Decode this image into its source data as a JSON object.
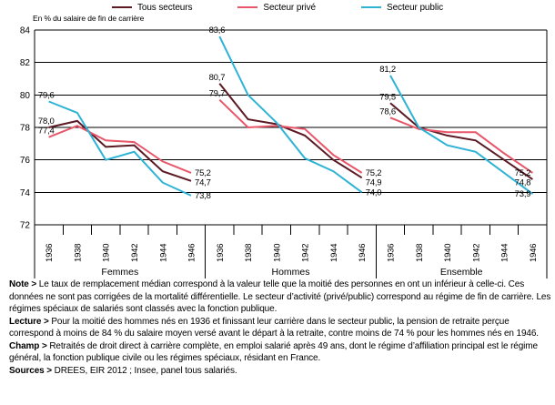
{
  "legend": {
    "items": [
      {
        "label": "Tous secteurs",
        "color": "#5b1a24"
      },
      {
        "label": "Secteur privé",
        "color": "#e8566a"
      },
      {
        "label": "Secteur public",
        "color": "#2fb3d5"
      }
    ]
  },
  "chart_data": {
    "type": "line",
    "ylabel": "En % du salaire de fin de carrière",
    "ylim": [
      72,
      84
    ],
    "ytick_step": 2,
    "grid": "horizontal",
    "legend_position": "top",
    "x_years": [
      "1936",
      "1938",
      "1940",
      "1942",
      "1944",
      "1946"
    ],
    "panels": [
      {
        "label": "Femmes",
        "series": [
          {
            "name": "Tous secteurs",
            "color": "#5b1a24",
            "values": [
              78.0,
              78.4,
              76.8,
              76.9,
              75.3,
              74.7
            ],
            "first_label": "78,0",
            "last_label": "74,7"
          },
          {
            "name": "Secteur privé",
            "color": "#e8566a",
            "values": [
              77.4,
              78.1,
              77.2,
              77.1,
              75.9,
              75.2
            ],
            "first_label": "77,4",
            "last_label": "75,2"
          },
          {
            "name": "Secteur public",
            "color": "#2fb3d5",
            "values": [
              79.6,
              78.9,
              76.0,
              76.5,
              74.6,
              73.8
            ],
            "first_label": "79,6",
            "last_label": "73,8"
          }
        ]
      },
      {
        "label": "Hommes",
        "series": [
          {
            "name": "Tous secteurs",
            "color": "#5b1a24",
            "values": [
              80.7,
              78.5,
              78.2,
              77.5,
              76.0,
              74.9
            ],
            "first_label": "80,7",
            "last_label": "74,9"
          },
          {
            "name": "Secteur privé",
            "color": "#e8566a",
            "values": [
              79.7,
              78.0,
              78.1,
              77.9,
              76.3,
              75.2
            ],
            "first_label": "79,7",
            "last_label": "75,2"
          },
          {
            "name": "Secteur public",
            "color": "#2fb3d5",
            "values": [
              83.6,
              80.0,
              78.3,
              76.1,
              75.3,
              74.0
            ],
            "first_label": "83,6",
            "last_label": "74,0"
          }
        ]
      },
      {
        "label": "Ensemble",
        "series": [
          {
            "name": "Tous secteurs",
            "color": "#5b1a24",
            "values": [
              79.5,
              78.0,
              77.5,
              77.2,
              76.0,
              74.8
            ],
            "first_label": "79,5",
            "last_label": "74,8"
          },
          {
            "name": "Secteur privé",
            "color": "#e8566a",
            "values": [
              78.6,
              77.9,
              77.7,
              77.7,
              76.4,
              75.2
            ],
            "first_label": "78,6",
            "last_label": "75,2"
          },
          {
            "name": "Secteur public",
            "color": "#2fb3d5",
            "values": [
              81.2,
              78.0,
              76.9,
              76.5,
              75.2,
              73.9
            ],
            "first_label": "81,2",
            "last_label": "73,9"
          }
        ]
      }
    ]
  },
  "notes": [
    {
      "label": "Note >",
      "text": "Le taux de remplacement médian correspond à la valeur telle que la moitié des personnes en ont un inférieur à celle-ci. Ces données ne sont pas corrigées de la mortalité différentielle. Le secteur d’activité (privé/public) correspond au régime de fin de carrière. Les régimes spéciaux de salariés sont classés avec la fonction publique."
    },
    {
      "label": "Lecture >",
      "text": "Pour la moitié des hommes nés en 1936 et finissant leur carrière dans le secteur public, la pension de retraite perçue correspond à moins de 84 % du salaire moyen versé avant le départ à la retraite, contre moins de 74 % pour les hommes nés en 1946."
    },
    {
      "label": "Champ >",
      "text": "Retraités de droit direct à carrière complète, en emploi salarié après 49 ans, dont le régime d’affiliation principal est le régime général, la fonction publique civile ou les régimes spéciaux, résidant en France."
    },
    {
      "label": "Sources >",
      "text": "DREES, EIR 2012 ; Insee, panel tous salariés."
    }
  ]
}
